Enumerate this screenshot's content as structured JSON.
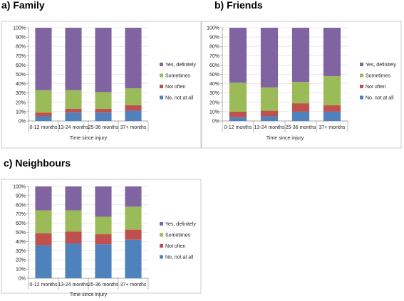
{
  "chart_data": [
    {
      "type": "bar",
      "stacked": true,
      "title": "a)   Family",
      "xlabel": "Time since injury",
      "ylabel": "",
      "ylim": [
        0,
        100
      ],
      "yticks": [
        "0%",
        "10%",
        "20%",
        "30%",
        "40%",
        "50%",
        "60%",
        "70%",
        "80%",
        "90%",
        "100%"
      ],
      "categories": [
        "0-12 months",
        "13-24 months",
        "25-36 months",
        "37+ months"
      ],
      "legend_position": "right",
      "series": [
        {
          "name": "No, not at all",
          "color": "#4f81bd",
          "values": [
            5,
            9,
            9,
            11
          ]
        },
        {
          "name": "Not often",
          "color": "#c0504d",
          "values": [
            4,
            4,
            4,
            6
          ]
        },
        {
          "name": "Sometimes",
          "color": "#9bbb59",
          "values": [
            24,
            20,
            18,
            18
          ]
        },
        {
          "name": "Yes, definitely",
          "color": "#8064a2",
          "values": [
            67,
            67,
            69,
            65
          ]
        }
      ]
    },
    {
      "type": "bar",
      "stacked": true,
      "title": "b) Friends",
      "xlabel": "Time since injury",
      "ylabel": "",
      "ylim": [
        0,
        100
      ],
      "yticks": [
        "0%",
        "10%",
        "20%",
        "30%",
        "40%",
        "50%",
        "60%",
        "70%",
        "80%",
        "90%",
        "100%"
      ],
      "categories": [
        "0-12 months",
        "13-24 months",
        "25-36 months",
        "37+ months"
      ],
      "legend_position": "right",
      "series": [
        {
          "name": "No, not at all",
          "color": "#4f81bd",
          "values": [
            4,
            5,
            10,
            10
          ]
        },
        {
          "name": "Not often",
          "color": "#c0504d",
          "values": [
            6,
            6,
            9,
            7
          ]
        },
        {
          "name": "Sometimes",
          "color": "#9bbb59",
          "values": [
            31,
            25,
            23,
            31
          ]
        },
        {
          "name": "Yes, definitely",
          "color": "#8064a2",
          "values": [
            59,
            64,
            58,
            52
          ]
        }
      ]
    },
    {
      "type": "bar",
      "stacked": true,
      "title": "c) Neighbours",
      "xlabel": "Time since injury",
      "ylabel": "",
      "ylim": [
        0,
        100
      ],
      "yticks": [
        "0%",
        "10%",
        "20%",
        "30%",
        "40%",
        "50%",
        "60%",
        "70%",
        "80%",
        "90%",
        "100%"
      ],
      "categories": [
        "0-12 months",
        "13-24 months",
        "25-36 months",
        "37+ months"
      ],
      "legend_position": "right",
      "series": [
        {
          "name": "No, not at all",
          "color": "#4f81bd",
          "values": [
            36,
            38,
            37,
            42
          ]
        },
        {
          "name": "Not often",
          "color": "#c0504d",
          "values": [
            13,
            13,
            11,
            11
          ]
        },
        {
          "name": "Sometimes",
          "color": "#9bbb59",
          "values": [
            25,
            23,
            19,
            25
          ]
        },
        {
          "name": "Yes, definitely",
          "color": "#8064a2",
          "values": [
            26,
            26,
            33,
            22
          ]
        }
      ]
    }
  ]
}
